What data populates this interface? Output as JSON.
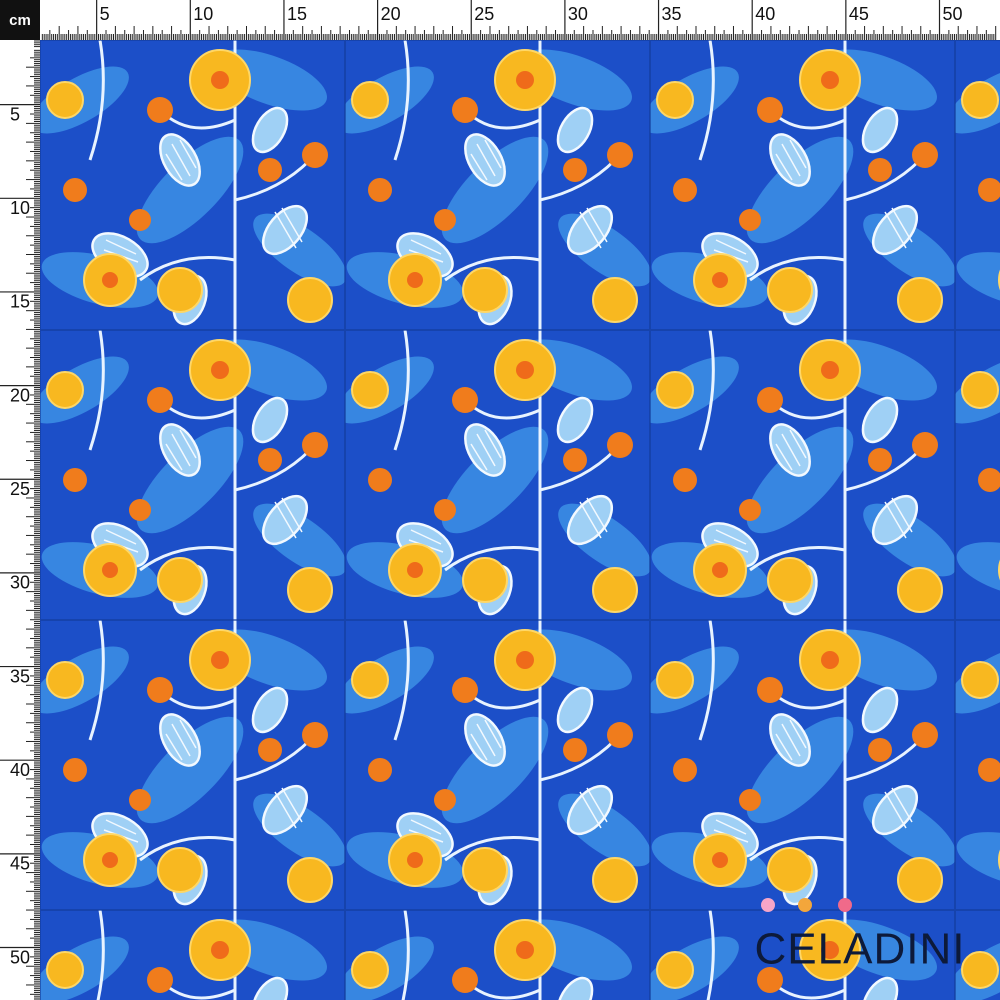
{
  "ruler": {
    "unit": "cm",
    "top_labels": [
      5,
      10,
      15,
      20,
      25,
      30,
      35,
      40,
      45,
      50
    ],
    "left_labels": [
      5,
      10,
      15,
      20,
      25,
      30,
      35,
      40,
      45,
      50
    ]
  },
  "logo": {
    "text": "CELADINI"
  }
}
